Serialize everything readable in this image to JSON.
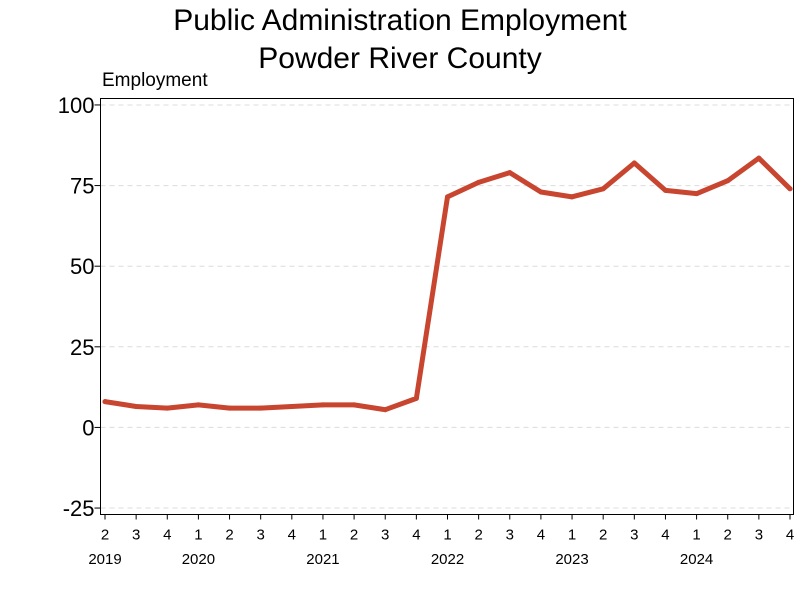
{
  "chart_data": {
    "type": "line",
    "title": [
      "Public Administration Employment",
      "Powder River County"
    ],
    "ylabel": "Employment",
    "xlabel": "",
    "ylim": [
      -27,
      102
    ],
    "yticks": [
      -25,
      0,
      25,
      50,
      75,
      100
    ],
    "grid": true,
    "line_color": "#c8452f",
    "quarter_ticks": [
      "2",
      "3",
      "4",
      "1",
      "2",
      "3",
      "4",
      "1",
      "2",
      "3",
      "4",
      "1",
      "2",
      "3",
      "4",
      "1",
      "2",
      "3",
      "4",
      "1",
      "2",
      "3",
      "4"
    ],
    "year_labels": [
      {
        "label": "2019",
        "index": 0
      },
      {
        "label": "2020",
        "index": 3
      },
      {
        "label": "2021",
        "index": 7
      },
      {
        "label": "2022",
        "index": 11
      },
      {
        "label": "2023",
        "index": 15
      },
      {
        "label": "2024",
        "index": 19
      }
    ],
    "series": [
      {
        "values": [
          8,
          6.5,
          6,
          7,
          6,
          6,
          6.5,
          7,
          7,
          5.5,
          9,
          71.5,
          76,
          79,
          73,
          71.5,
          74,
          82,
          73.5,
          72.5,
          76.5,
          83.5,
          74
        ]
      }
    ]
  }
}
